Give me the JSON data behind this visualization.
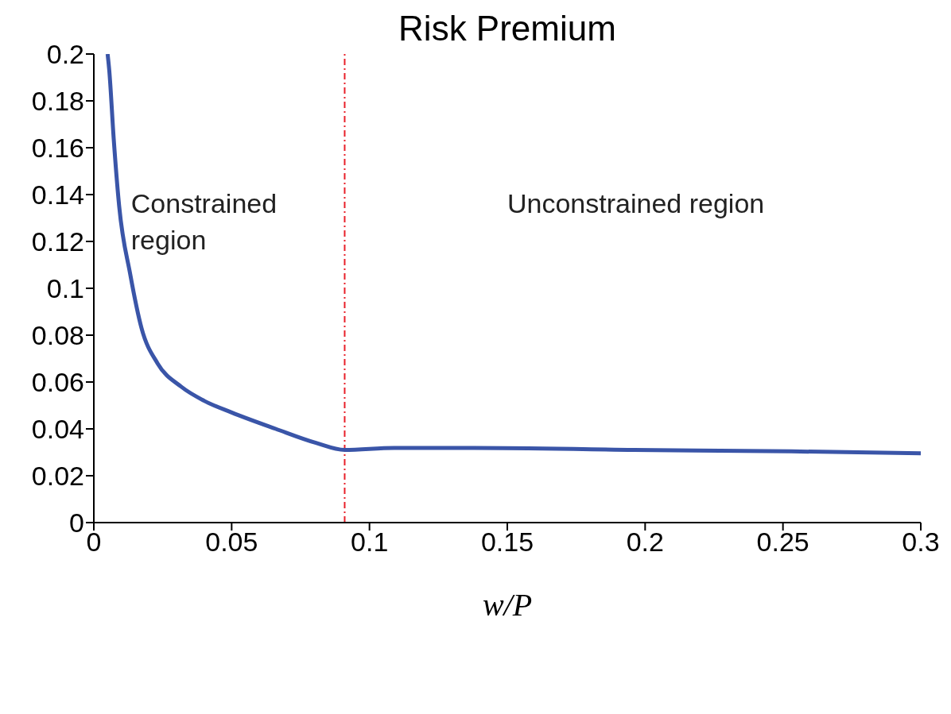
{
  "chart_data": {
    "type": "line",
    "title": "Risk Premium",
    "xlabel": "w/P",
    "x": [
      0.005,
      0.0056,
      0.0072,
      0.0092,
      0.0132,
      0.0173,
      0.0231,
      0.0317,
      0.04,
      0.05,
      0.066,
      0.0806,
      0.091,
      0.109,
      0.138,
      0.196,
      0.253,
      0.3
    ],
    "series": [
      {
        "color": "#3a55a8",
        "values": [
          0.2,
          0.193,
          0.164,
          0.135,
          0.106,
          0.083,
          0.068,
          0.058,
          0.052,
          0.047,
          0.04,
          0.034,
          0.031,
          0.0319,
          0.0319,
          0.031,
          0.0304,
          0.0296
        ]
      }
    ],
    "xlim": [
      0,
      0.3
    ],
    "xticks": [
      0,
      0.05,
      0.1,
      0.15,
      0.2,
      0.25,
      0.3
    ],
    "ylim": [
      0,
      0.2
    ],
    "yticks": [
      0,
      0.02,
      0.04,
      0.06,
      0.08,
      0.1,
      0.12,
      0.14,
      0.16,
      0.18,
      0.2
    ],
    "ref_lines": [
      {
        "axis": "x",
        "value": 0.091,
        "color": "#e8202a",
        "line_style": "dashdot"
      }
    ],
    "annotations": [
      "Constrained region",
      "Unconstrained region"
    ],
    "grid": false,
    "legend": false,
    "marker": "none",
    "line_style": "solid"
  }
}
